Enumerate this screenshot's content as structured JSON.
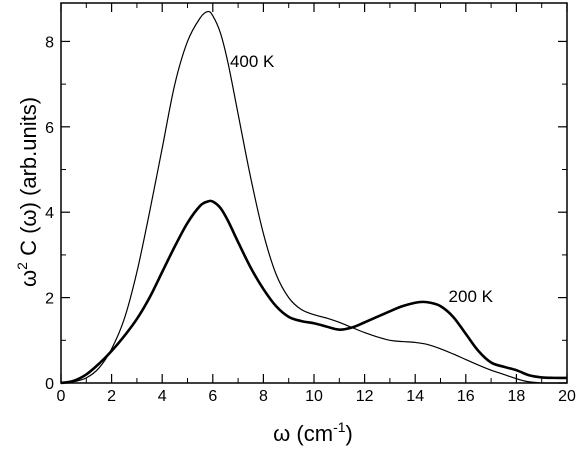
{
  "chart_data": {
    "type": "line",
    "xlabel_base": "ω (cm",
    "xlabel_sup": "-1",
    "xlabel_end": ")",
    "ylabel_base": "ω",
    "ylabel_sup": "2",
    "ylabel_rest": " C (ω)  (arb.units)",
    "xlim": [
      0,
      20
    ],
    "ylim": [
      0,
      8.9
    ],
    "xticks": [
      0,
      2,
      4,
      6,
      8,
      10,
      12,
      14,
      16,
      18,
      20
    ],
    "yticks": [
      0,
      2,
      4,
      6,
      8
    ],
    "grid": false,
    "series": [
      {
        "name": "400 K",
        "line_width": "thin",
        "x": [
          0,
          0.5,
          1.0,
          1.5,
          2.0,
          2.5,
          3.0,
          3.5,
          4.0,
          4.5,
          5.0,
          5.5,
          5.8,
          6.0,
          6.3,
          6.6,
          7.0,
          7.5,
          8.0,
          8.5,
          9.0,
          9.5,
          10.0,
          10.5,
          11.0,
          11.5,
          12.0,
          12.5,
          13.0,
          13.5,
          14.0,
          14.5,
          15.0,
          15.5,
          16.0,
          16.5,
          17.0,
          17.5,
          18.0,
          18.3,
          18.6,
          19.0,
          19.5,
          20.0
        ],
        "y": [
          0,
          0.03,
          0.12,
          0.35,
          0.8,
          1.5,
          2.6,
          4.0,
          5.5,
          7.0,
          8.0,
          8.55,
          8.7,
          8.6,
          8.2,
          7.5,
          6.3,
          4.8,
          3.5,
          2.55,
          2.0,
          1.72,
          1.6,
          1.52,
          1.42,
          1.3,
          1.18,
          1.08,
          1.0,
          0.97,
          0.95,
          0.9,
          0.8,
          0.68,
          0.55,
          0.42,
          0.3,
          0.2,
          0.1,
          0.05,
          0.02,
          0,
          0,
          0
        ]
      },
      {
        "name": "200 K",
        "line_width": "thick",
        "x": [
          0,
          0.5,
          1.0,
          1.5,
          2.0,
          2.5,
          3.0,
          3.5,
          4.0,
          4.5,
          5.0,
          5.5,
          5.8,
          6.0,
          6.3,
          6.6,
          7.0,
          7.5,
          8.0,
          8.5,
          9.0,
          9.5,
          10.0,
          10.5,
          11.0,
          11.5,
          12.0,
          12.5,
          13.0,
          13.5,
          14.0,
          14.3,
          14.6,
          15.0,
          15.5,
          16.0,
          16.5,
          17.0,
          17.5,
          18.0,
          18.5,
          19.0,
          19.5,
          20.0
        ],
        "y": [
          0,
          0.05,
          0.2,
          0.45,
          0.75,
          1.1,
          1.5,
          2.0,
          2.6,
          3.2,
          3.75,
          4.15,
          4.25,
          4.25,
          4.1,
          3.8,
          3.3,
          2.7,
          2.2,
          1.8,
          1.55,
          1.45,
          1.4,
          1.32,
          1.25,
          1.3,
          1.42,
          1.55,
          1.68,
          1.8,
          1.88,
          1.9,
          1.88,
          1.8,
          1.55,
          1.15,
          0.75,
          0.48,
          0.38,
          0.3,
          0.18,
          0.13,
          0.12,
          0.12
        ]
      }
    ]
  }
}
